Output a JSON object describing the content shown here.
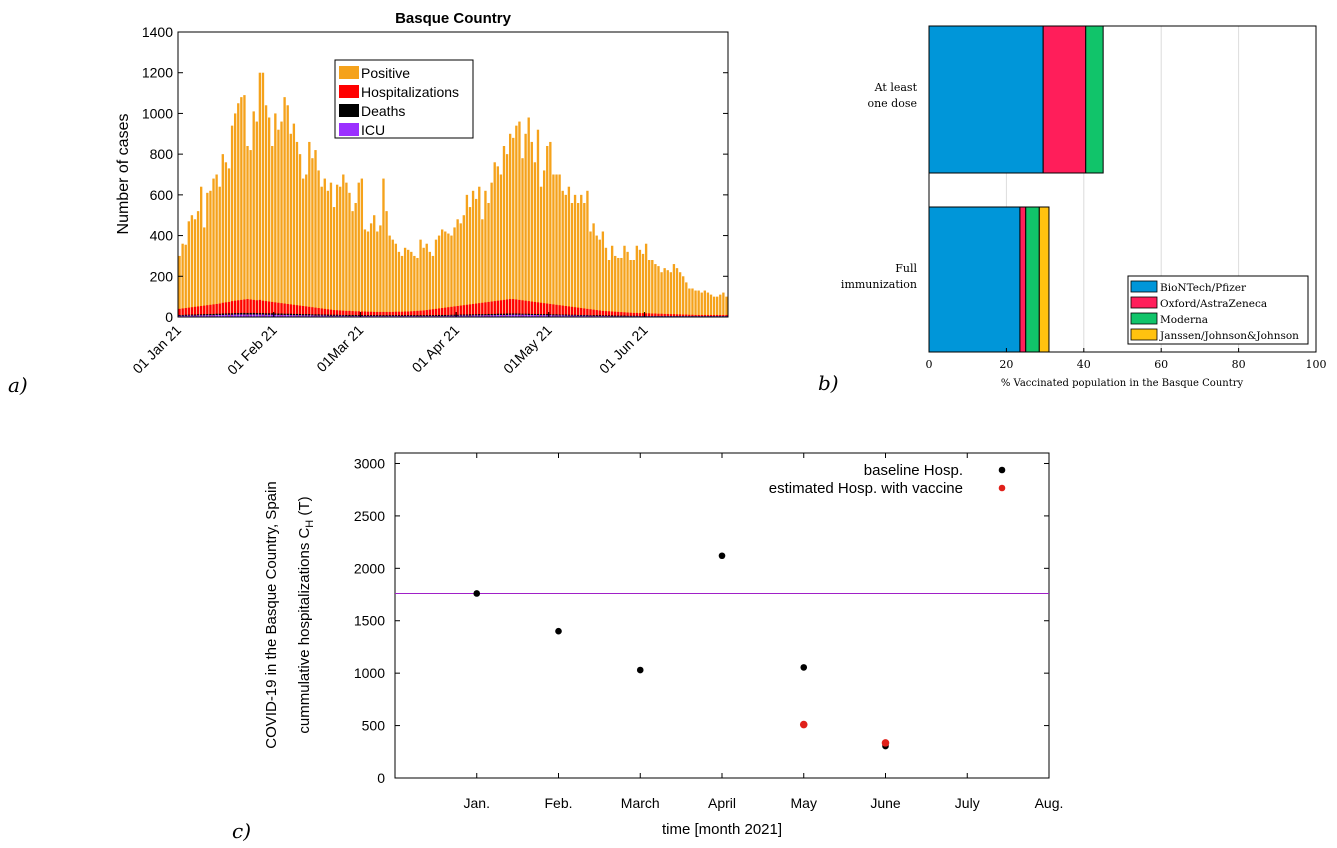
{
  "panel_labels": [
    "a)",
    "b)",
    "c)"
  ],
  "chart_data": [
    {
      "id": "a",
      "type": "bar",
      "stacked": true,
      "title": "Basque Country",
      "ylabel": "Number of cases",
      "xlabel": "",
      "ylim": [
        0,
        1400
      ],
      "yticks": [
        0,
        200,
        400,
        600,
        800,
        1000,
        1200,
        1400
      ],
      "xtick_labels": [
        "01 Jan 21",
        "01 Feb 21",
        "01Mar 21",
        "01 Apr 21",
        "01May 21",
        "01 Jun 21"
      ],
      "xtick_days": [
        0,
        31,
        59,
        90,
        120,
        151
      ],
      "x_start": "2021-01-01",
      "legend_position": "top-center",
      "grid": false,
      "series": [
        {
          "name": "Positive",
          "color": "#f5a21b",
          "values": [
            300,
            360,
            355,
            470,
            500,
            480,
            520,
            640,
            440,
            610,
            620,
            680,
            700,
            640,
            800,
            760,
            730,
            940,
            1000,
            1050,
            1080,
            1090,
            840,
            820,
            1010,
            960,
            1200,
            1200,
            1040,
            980,
            840,
            1000,
            920,
            960,
            1080,
            1040,
            900,
            950,
            860,
            800,
            680,
            700,
            860,
            780,
            820,
            720,
            640,
            680,
            620,
            660,
            540,
            650,
            640,
            700,
            660,
            610,
            520,
            560,
            660,
            680,
            430,
            420,
            460,
            500,
            420,
            450,
            680,
            520,
            400,
            380,
            360,
            320,
            300,
            340,
            330,
            320,
            300,
            290,
            380,
            340,
            360,
            320,
            300,
            380,
            400,
            430,
            420,
            410,
            400,
            440,
            480,
            460,
            500,
            600,
            540,
            620,
            580,
            640,
            480,
            620,
            560,
            660,
            760,
            740,
            700,
            840,
            800,
            900,
            880,
            940,
            960,
            780,
            900,
            980,
            860,
            760,
            920,
            640,
            720,
            840,
            860,
            700,
            700,
            700,
            620,
            600,
            640,
            560,
            600,
            560,
            600,
            560,
            620,
            420,
            460,
            400,
            380,
            420,
            340,
            280,
            350,
            300,
            290,
            290,
            350,
            320,
            280,
            280,
            350,
            330,
            310,
            360,
            280,
            280,
            260,
            250,
            220,
            240,
            230,
            220,
            260,
            240,
            220,
            200,
            170,
            140,
            140,
            130,
            130,
            120,
            130,
            120,
            110,
            100,
            100,
            110,
            120,
            100
          ]
        },
        {
          "name": "Hospitalizations",
          "color": "#ff0000",
          "values": [
            40,
            42,
            44,
            46,
            48,
            50,
            52,
            54,
            56,
            58,
            60,
            62,
            64,
            66,
            70,
            72,
            74,
            78,
            80,
            82,
            84,
            86,
            88,
            86,
            84,
            82,
            84,
            80,
            78,
            76,
            74,
            72,
            70,
            68,
            66,
            64,
            62,
            60,
            58,
            56,
            54,
            52,
            50,
            48,
            46,
            44,
            42,
            40,
            38,
            36,
            34,
            33,
            32,
            31,
            30,
            30,
            29,
            28,
            28,
            27,
            27,
            26,
            26,
            25,
            25,
            25,
            25,
            25,
            25,
            25,
            26,
            26,
            26,
            27,
            27,
            28,
            29,
            30,
            31,
            32,
            34,
            36,
            38,
            40,
            42,
            44,
            46,
            48,
            50,
            52,
            54,
            56,
            58,
            60,
            62,
            64,
            66,
            68,
            70,
            72,
            74,
            76,
            78,
            80,
            82,
            84,
            86,
            88,
            88,
            86,
            84,
            82,
            80,
            78,
            76,
            74,
            72,
            70,
            68,
            66,
            64,
            62,
            60,
            58,
            56,
            54,
            52,
            50,
            48,
            46,
            44,
            42,
            40,
            38,
            36,
            34,
            32,
            30,
            29,
            28,
            27,
            26,
            25,
            24,
            23,
            22,
            21,
            20,
            20,
            19,
            19,
            18,
            18,
            17,
            17,
            16,
            16,
            15,
            15,
            14,
            14,
            13,
            13,
            12,
            12,
            11,
            11,
            10,
            10,
            10,
            10,
            10,
            10,
            10,
            10,
            10,
            10,
            10,
            10,
            10,
            10,
            10,
            10,
            10,
            10
          ]
        },
        {
          "name": "Deaths",
          "color": "#000000",
          "values": [
            10,
            10,
            11,
            11,
            12,
            12,
            13,
            13,
            14,
            14,
            15,
            15,
            16,
            16,
            17,
            17,
            18,
            18,
            19,
            19,
            20,
            20,
            20,
            20,
            20,
            19,
            19,
            19,
            18,
            18,
            18,
            17,
            17,
            17,
            16,
            16,
            16,
            15,
            15,
            15,
            14,
            14,
            14,
            13,
            13,
            13,
            12,
            12,
            12,
            11,
            11,
            11,
            10,
            10,
            10,
            10,
            10,
            10,
            9,
            9,
            9,
            9,
            9,
            9,
            9,
            9,
            9,
            9,
            9,
            9,
            9,
            9,
            9,
            9,
            9,
            9,
            9,
            9,
            9,
            9,
            9,
            9,
            9,
            9,
            10,
            10,
            10,
            10,
            11,
            11,
            11,
            12,
            12,
            12,
            13,
            13,
            13,
            14,
            14,
            14,
            15,
            15,
            15,
            16,
            16,
            16,
            17,
            17,
            17,
            17,
            17,
            16,
            16,
            16,
            15,
            15,
            15,
            14,
            14,
            14,
            13,
            13,
            13,
            12,
            12,
            12,
            11,
            11,
            11,
            10,
            10,
            10,
            10,
            9,
            9,
            9,
            9,
            8,
            8,
            8,
            8,
            7,
            7,
            7,
            7,
            6,
            6,
            6,
            6,
            5,
            5,
            5,
            5,
            5,
            5,
            5,
            5,
            5,
            5,
            5,
            5,
            5,
            5,
            5,
            5,
            5,
            5,
            5,
            5,
            5,
            5,
            5,
            5,
            5,
            5,
            5,
            5,
            5,
            5,
            5,
            5,
            5,
            5,
            5,
            5
          ]
        },
        {
          "name": "ICU",
          "color": "#9b30ff",
          "values": [
            6,
            6,
            6,
            7,
            7,
            7,
            8,
            8,
            8,
            9,
            9,
            9,
            10,
            10,
            10,
            11,
            11,
            11,
            12,
            12,
            12,
            12,
            12,
            12,
            12,
            12,
            12,
            12,
            11,
            11,
            11,
            11,
            10,
            10,
            10,
            10,
            9,
            9,
            9,
            9,
            8,
            8,
            8,
            8,
            7,
            7,
            7,
            7,
            6,
            6,
            6,
            6,
            6,
            6,
            5,
            5,
            5,
            5,
            5,
            5,
            5,
            5,
            5,
            5,
            5,
            5,
            5,
            5,
            5,
            5,
            5,
            5,
            5,
            5,
            5,
            5,
            5,
            5,
            5,
            5,
            5,
            5,
            5,
            5,
            5,
            5,
            5,
            6,
            6,
            6,
            6,
            7,
            7,
            7,
            7,
            8,
            8,
            8,
            8,
            9,
            9,
            9,
            9,
            10,
            10,
            10,
            10,
            11,
            11,
            11,
            11,
            11,
            11,
            10,
            10,
            10,
            10,
            9,
            9,
            9,
            9,
            8,
            8,
            8,
            8,
            7,
            7,
            7,
            7,
            6,
            6,
            6,
            6,
            6,
            5,
            5,
            5,
            5,
            5,
            5,
            4,
            4,
            4,
            4,
            4,
            4,
            4,
            4,
            4,
            4,
            4,
            4,
            4,
            4,
            4,
            4,
            4,
            4,
            4,
            4,
            4,
            4,
            4,
            4,
            4,
            4,
            4,
            4,
            4,
            4,
            4,
            4,
            4,
            4,
            4,
            4,
            4,
            4,
            4,
            4,
            4,
            4,
            4,
            4,
            4
          ]
        }
      ]
    },
    {
      "id": "b",
      "type": "bar",
      "orientation": "horizontal",
      "stacked": true,
      "xlabel": "% Vaccinated population in the Basque Country",
      "xlim": [
        0,
        100
      ],
      "xticks": [
        0,
        20,
        40,
        60,
        80,
        100
      ],
      "grid": true,
      "legend_position": "bottom-right",
      "categories": [
        "At least one dose",
        "Full immunization"
      ],
      "category_lines": [
        [
          "At least",
          "one dose"
        ],
        [
          "Full",
          "immunization"
        ]
      ],
      "series": [
        {
          "name": "BioNTech/Pfizer",
          "color": "#0096d9",
          "values": [
            29.5,
            23.5
          ]
        },
        {
          "name": "Oxford/AstraZeneca",
          "color": "#ff1e5a",
          "values": [
            11,
            1.5
          ]
        },
        {
          "name": "Moderna",
          "color": "#11c46a",
          "values": [
            4.5,
            3.5
          ]
        },
        {
          "name": "Janssen/Johnson&Johnson",
          "color": "#ffc20f",
          "values": [
            0,
            2.5
          ]
        }
      ]
    },
    {
      "id": "c",
      "type": "scatter",
      "xlabel": "time [month 2021]",
      "ylabel_lines": [
        "COVID-19 in the Basque Country, Spain",
        "cummulative hospitalizations C_H (T)"
      ],
      "ylim": [
        0,
        3100
      ],
      "yticks": [
        0,
        500,
        1000,
        1500,
        2000,
        2500,
        3000
      ],
      "xlim": [
        0,
        8
      ],
      "xticks": [
        1,
        2,
        3,
        4,
        5,
        6,
        7,
        8
      ],
      "xtick_labels": [
        "Jan.",
        "Feb.",
        "March",
        "April",
        "May",
        "June",
        "July",
        "Aug."
      ],
      "grid": false,
      "legend_position": "top-right",
      "hline": {
        "y": 1760,
        "color": "#a020c8"
      },
      "series": [
        {
          "name": "baseline Hosp.",
          "color": "#000000",
          "x": [
            1,
            2,
            3,
            4,
            5,
            6
          ],
          "y": [
            1760,
            1400,
            1030,
            2120,
            1055,
            305
          ]
        },
        {
          "name": "estimated Hosp. with vaccine",
          "color": "#e0201a",
          "x": [
            5,
            6
          ],
          "y": [
            510,
            335
          ]
        }
      ]
    }
  ]
}
